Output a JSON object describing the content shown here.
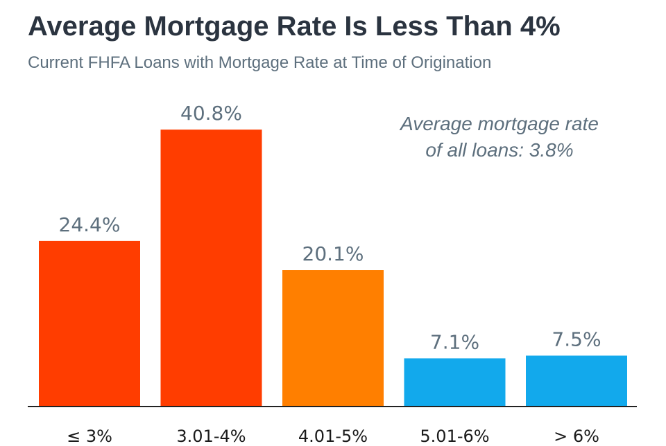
{
  "title": "Average Mortgage Rate Is Less Than 4%",
  "subtitle": "Current FHFA Loans with Mortgage Rate at Time of Origination",
  "annotation": {
    "line1": "Average mortgage rate",
    "line2": "of all loans: 3.8%"
  },
  "colors": {
    "red": "#FF3D00",
    "orange": "#FF7F00",
    "blue": "#12A9EC",
    "axis": "#222222",
    "label": "#5d6f7d",
    "tick": "#1a1a1a"
  },
  "chart_data": {
    "type": "bar",
    "categories": [
      "≤ 3%",
      "3.01-4%",
      "4.01-5%",
      "5.01-6%",
      "> 6%"
    ],
    "values": [
      24.4,
      40.8,
      20.1,
      7.1,
      7.5
    ],
    "data_labels": [
      "24.4%",
      "40.8%",
      "20.1%",
      "7.1%",
      "7.5%"
    ],
    "bar_colors": [
      "#FF3D00",
      "#FF3D00",
      "#FF7F00",
      "#12A9EC",
      "#12A9EC"
    ],
    "xlabel": "",
    "ylabel": "",
    "ylim": [
      0,
      45
    ],
    "grid": false,
    "legend": "none"
  }
}
